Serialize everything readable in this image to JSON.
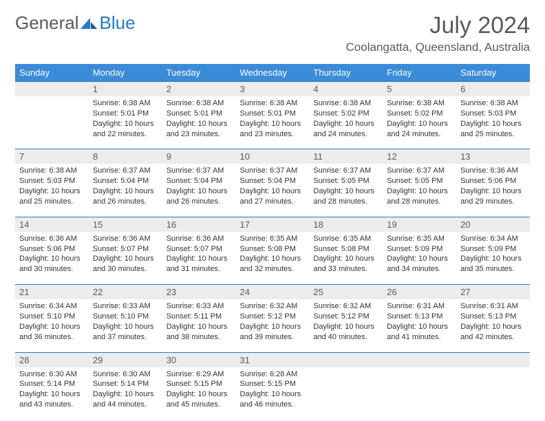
{
  "logo": {
    "general": "General",
    "blue": "Blue"
  },
  "title": "July 2024",
  "location": "Coolangatta, Queensland, Australia",
  "colors": {
    "header_bg": "#3a8bd8",
    "header_border": "#2678c4",
    "daynum_bg": "#ececec",
    "text_gray": "#5a5a5a",
    "text_dark": "#333333",
    "logo_blue": "#2678c4"
  },
  "dow": [
    "Sunday",
    "Monday",
    "Tuesday",
    "Wednesday",
    "Thursday",
    "Friday",
    "Saturday"
  ],
  "weeks": [
    {
      "nums": [
        "",
        "1",
        "2",
        "3",
        "4",
        "5",
        "6"
      ],
      "cells": [
        {},
        {
          "sunrise": "Sunrise: 6:38 AM",
          "sunset": "Sunset: 5:01 PM",
          "day1": "Daylight: 10 hours",
          "day2": "and 22 minutes."
        },
        {
          "sunrise": "Sunrise: 6:38 AM",
          "sunset": "Sunset: 5:01 PM",
          "day1": "Daylight: 10 hours",
          "day2": "and 23 minutes."
        },
        {
          "sunrise": "Sunrise: 6:38 AM",
          "sunset": "Sunset: 5:01 PM",
          "day1": "Daylight: 10 hours",
          "day2": "and 23 minutes."
        },
        {
          "sunrise": "Sunrise: 6:38 AM",
          "sunset": "Sunset: 5:02 PM",
          "day1": "Daylight: 10 hours",
          "day2": "and 24 minutes."
        },
        {
          "sunrise": "Sunrise: 6:38 AM",
          "sunset": "Sunset: 5:02 PM",
          "day1": "Daylight: 10 hours",
          "day2": "and 24 minutes."
        },
        {
          "sunrise": "Sunrise: 6:38 AM",
          "sunset": "Sunset: 5:03 PM",
          "day1": "Daylight: 10 hours",
          "day2": "and 25 minutes."
        }
      ]
    },
    {
      "nums": [
        "7",
        "8",
        "9",
        "10",
        "11",
        "12",
        "13"
      ],
      "cells": [
        {
          "sunrise": "Sunrise: 6:38 AM",
          "sunset": "Sunset: 5:03 PM",
          "day1": "Daylight: 10 hours",
          "day2": "and 25 minutes."
        },
        {
          "sunrise": "Sunrise: 6:37 AM",
          "sunset": "Sunset: 5:04 PM",
          "day1": "Daylight: 10 hours",
          "day2": "and 26 minutes."
        },
        {
          "sunrise": "Sunrise: 6:37 AM",
          "sunset": "Sunset: 5:04 PM",
          "day1": "Daylight: 10 hours",
          "day2": "and 26 minutes."
        },
        {
          "sunrise": "Sunrise: 6:37 AM",
          "sunset": "Sunset: 5:04 PM",
          "day1": "Daylight: 10 hours",
          "day2": "and 27 minutes."
        },
        {
          "sunrise": "Sunrise: 6:37 AM",
          "sunset": "Sunset: 5:05 PM",
          "day1": "Daylight: 10 hours",
          "day2": "and 28 minutes."
        },
        {
          "sunrise": "Sunrise: 6:37 AM",
          "sunset": "Sunset: 5:05 PM",
          "day1": "Daylight: 10 hours",
          "day2": "and 28 minutes."
        },
        {
          "sunrise": "Sunrise: 6:36 AM",
          "sunset": "Sunset: 5:06 PM",
          "day1": "Daylight: 10 hours",
          "day2": "and 29 minutes."
        }
      ]
    },
    {
      "nums": [
        "14",
        "15",
        "16",
        "17",
        "18",
        "19",
        "20"
      ],
      "cells": [
        {
          "sunrise": "Sunrise: 6:36 AM",
          "sunset": "Sunset: 5:06 PM",
          "day1": "Daylight: 10 hours",
          "day2": "and 30 minutes."
        },
        {
          "sunrise": "Sunrise: 6:36 AM",
          "sunset": "Sunset: 5:07 PM",
          "day1": "Daylight: 10 hours",
          "day2": "and 30 minutes."
        },
        {
          "sunrise": "Sunrise: 6:36 AM",
          "sunset": "Sunset: 5:07 PM",
          "day1": "Daylight: 10 hours",
          "day2": "and 31 minutes."
        },
        {
          "sunrise": "Sunrise: 6:35 AM",
          "sunset": "Sunset: 5:08 PM",
          "day1": "Daylight: 10 hours",
          "day2": "and 32 minutes."
        },
        {
          "sunrise": "Sunrise: 6:35 AM",
          "sunset": "Sunset: 5:08 PM",
          "day1": "Daylight: 10 hours",
          "day2": "and 33 minutes."
        },
        {
          "sunrise": "Sunrise: 6:35 AM",
          "sunset": "Sunset: 5:09 PM",
          "day1": "Daylight: 10 hours",
          "day2": "and 34 minutes."
        },
        {
          "sunrise": "Sunrise: 6:34 AM",
          "sunset": "Sunset: 5:09 PM",
          "day1": "Daylight: 10 hours",
          "day2": "and 35 minutes."
        }
      ]
    },
    {
      "nums": [
        "21",
        "22",
        "23",
        "24",
        "25",
        "26",
        "27"
      ],
      "cells": [
        {
          "sunrise": "Sunrise: 6:34 AM",
          "sunset": "Sunset: 5:10 PM",
          "day1": "Daylight: 10 hours",
          "day2": "and 36 minutes."
        },
        {
          "sunrise": "Sunrise: 6:33 AM",
          "sunset": "Sunset: 5:10 PM",
          "day1": "Daylight: 10 hours",
          "day2": "and 37 minutes."
        },
        {
          "sunrise": "Sunrise: 6:33 AM",
          "sunset": "Sunset: 5:11 PM",
          "day1": "Daylight: 10 hours",
          "day2": "and 38 minutes."
        },
        {
          "sunrise": "Sunrise: 6:32 AM",
          "sunset": "Sunset: 5:12 PM",
          "day1": "Daylight: 10 hours",
          "day2": "and 39 minutes."
        },
        {
          "sunrise": "Sunrise: 6:32 AM",
          "sunset": "Sunset: 5:12 PM",
          "day1": "Daylight: 10 hours",
          "day2": "and 40 minutes."
        },
        {
          "sunrise": "Sunrise: 6:31 AM",
          "sunset": "Sunset: 5:13 PM",
          "day1": "Daylight: 10 hours",
          "day2": "and 41 minutes."
        },
        {
          "sunrise": "Sunrise: 6:31 AM",
          "sunset": "Sunset: 5:13 PM",
          "day1": "Daylight: 10 hours",
          "day2": "and 42 minutes."
        }
      ]
    },
    {
      "nums": [
        "28",
        "29",
        "30",
        "31",
        "",
        "",
        ""
      ],
      "cells": [
        {
          "sunrise": "Sunrise: 6:30 AM",
          "sunset": "Sunset: 5:14 PM",
          "day1": "Daylight: 10 hours",
          "day2": "and 43 minutes."
        },
        {
          "sunrise": "Sunrise: 6:30 AM",
          "sunset": "Sunset: 5:14 PM",
          "day1": "Daylight: 10 hours",
          "day2": "and 44 minutes."
        },
        {
          "sunrise": "Sunrise: 6:29 AM",
          "sunset": "Sunset: 5:15 PM",
          "day1": "Daylight: 10 hours",
          "day2": "and 45 minutes."
        },
        {
          "sunrise": "Sunrise: 6:28 AM",
          "sunset": "Sunset: 5:15 PM",
          "day1": "Daylight: 10 hours",
          "day2": "and 46 minutes."
        },
        {},
        {},
        {}
      ]
    }
  ]
}
